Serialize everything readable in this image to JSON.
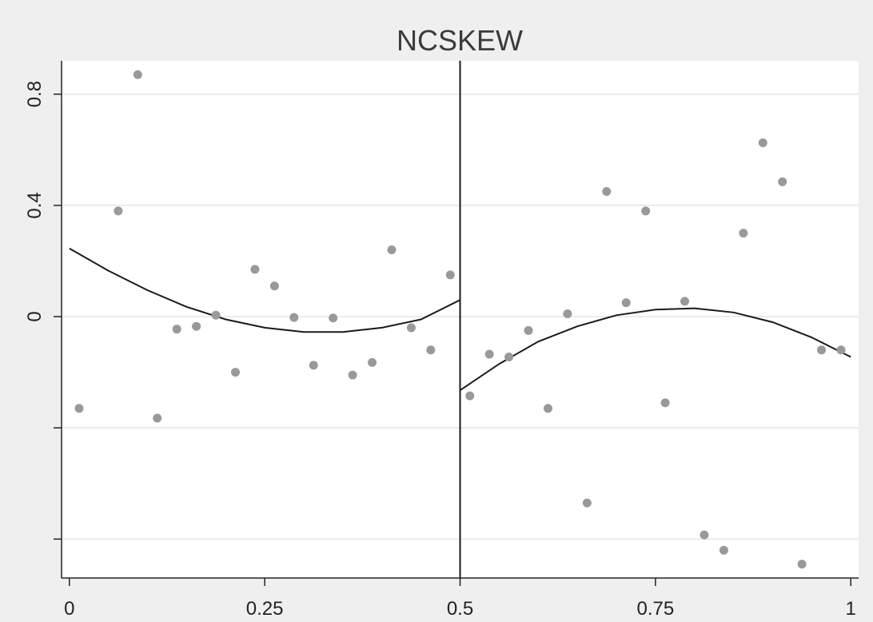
{
  "chart_data": {
    "type": "scatter",
    "title": "NCSKEW",
    "xlabel": "",
    "ylabel": "",
    "xlim": [
      -0.01,
      1.01
    ],
    "ylim": [
      -0.94,
      0.92
    ],
    "x_ticks": [
      0,
      0.25,
      0.5,
      0.75,
      1
    ],
    "x_tick_labels": [
      "0",
      "0.25",
      "0.5",
      "0.75",
      "1"
    ],
    "y_ticks": [
      -0.8,
      -0.4,
      0,
      0.4,
      0.8
    ],
    "y_tick_labels": [
      "",
      "",
      "0",
      "0.4",
      "0.8"
    ],
    "grid": true,
    "cutoff": 0.5,
    "colors": {
      "points": "#999999",
      "line": "#1a1a1a",
      "plot_bg": "#ffffff",
      "page_bg": "#efefef",
      "grid": "#ececec"
    },
    "points": [
      {
        "x": 0.0125,
        "y": -0.33
      },
      {
        "x": 0.0625,
        "y": 0.38
      },
      {
        "x": 0.0875,
        "y": 0.87
      },
      {
        "x": 0.1125,
        "y": -0.365
      },
      {
        "x": 0.1375,
        "y": -0.045
      },
      {
        "x": 0.1625,
        "y": -0.035
      },
      {
        "x": 0.1875,
        "y": 0.005
      },
      {
        "x": 0.2125,
        "y": -0.2
      },
      {
        "x": 0.2375,
        "y": 0.17
      },
      {
        "x": 0.2625,
        "y": 0.11
      },
      {
        "x": 0.2875,
        "y": -0.003
      },
      {
        "x": 0.3125,
        "y": -0.175
      },
      {
        "x": 0.3375,
        "y": -0.005
      },
      {
        "x": 0.3625,
        "y": -0.21
      },
      {
        "x": 0.3875,
        "y": -0.165
      },
      {
        "x": 0.4125,
        "y": 0.24
      },
      {
        "x": 0.4375,
        "y": -0.04
      },
      {
        "x": 0.4625,
        "y": -0.12
      },
      {
        "x": 0.4875,
        "y": 0.15
      },
      {
        "x": 0.5125,
        "y": -0.285
      },
      {
        "x": 0.5375,
        "y": -0.135
      },
      {
        "x": 0.5625,
        "y": -0.145
      },
      {
        "x": 0.5875,
        "y": -0.05
      },
      {
        "x": 0.6125,
        "y": -0.33
      },
      {
        "x": 0.6375,
        "y": 0.01
      },
      {
        "x": 0.6625,
        "y": -0.67
      },
      {
        "x": 0.6875,
        "y": 0.45
      },
      {
        "x": 0.7125,
        "y": 0.05
      },
      {
        "x": 0.7375,
        "y": 0.38
      },
      {
        "x": 0.7625,
        "y": -0.31
      },
      {
        "x": 0.7875,
        "y": 0.055
      },
      {
        "x": 0.8125,
        "y": -0.785
      },
      {
        "x": 0.8375,
        "y": -0.84
      },
      {
        "x": 0.8625,
        "y": 0.3
      },
      {
        "x": 0.8875,
        "y": 0.625
      },
      {
        "x": 0.9125,
        "y": 0.485
      },
      {
        "x": 0.9375,
        "y": -0.89
      },
      {
        "x": 0.9625,
        "y": -0.12
      },
      {
        "x": 0.9875,
        "y": -0.12
      }
    ],
    "fit_left": [
      {
        "x": 0.0,
        "y": 0.245
      },
      {
        "x": 0.05,
        "y": 0.165
      },
      {
        "x": 0.1,
        "y": 0.095
      },
      {
        "x": 0.15,
        "y": 0.035
      },
      {
        "x": 0.2,
        "y": -0.01
      },
      {
        "x": 0.25,
        "y": -0.04
      },
      {
        "x": 0.3,
        "y": -0.055
      },
      {
        "x": 0.35,
        "y": -0.055
      },
      {
        "x": 0.4,
        "y": -0.04
      },
      {
        "x": 0.45,
        "y": -0.01
      },
      {
        "x": 0.5,
        "y": 0.06
      }
    ],
    "fit_right": [
      {
        "x": 0.5,
        "y": -0.265
      },
      {
        "x": 0.55,
        "y": -0.17
      },
      {
        "x": 0.6,
        "y": -0.09
      },
      {
        "x": 0.65,
        "y": -0.035
      },
      {
        "x": 0.7,
        "y": 0.005
      },
      {
        "x": 0.75,
        "y": 0.025
      },
      {
        "x": 0.8,
        "y": 0.03
      },
      {
        "x": 0.85,
        "y": 0.015
      },
      {
        "x": 0.9,
        "y": -0.02
      },
      {
        "x": 0.95,
        "y": -0.075
      },
      {
        "x": 1.0,
        "y": -0.145
      }
    ]
  }
}
